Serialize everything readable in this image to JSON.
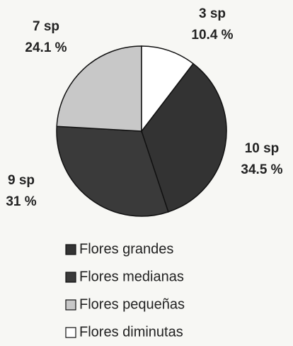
{
  "chart_data": {
    "type": "pie",
    "categories": [
      "Flores grandes",
      "Flores medianas",
      "Flores pequeñas",
      "Flores diminutas"
    ],
    "values": [
      34.5,
      31,
      24.1,
      10.4
    ],
    "value_labels": [
      "34.5 %",
      "31 %",
      "24.1 %",
      "10.4 %"
    ],
    "count_labels": [
      "10 sp",
      "9 sp",
      "7 sp",
      "3 sp"
    ],
    "colors": [
      "#333333",
      "#3a3a3a",
      "#c8c8c8",
      "#ffffff"
    ]
  }
}
